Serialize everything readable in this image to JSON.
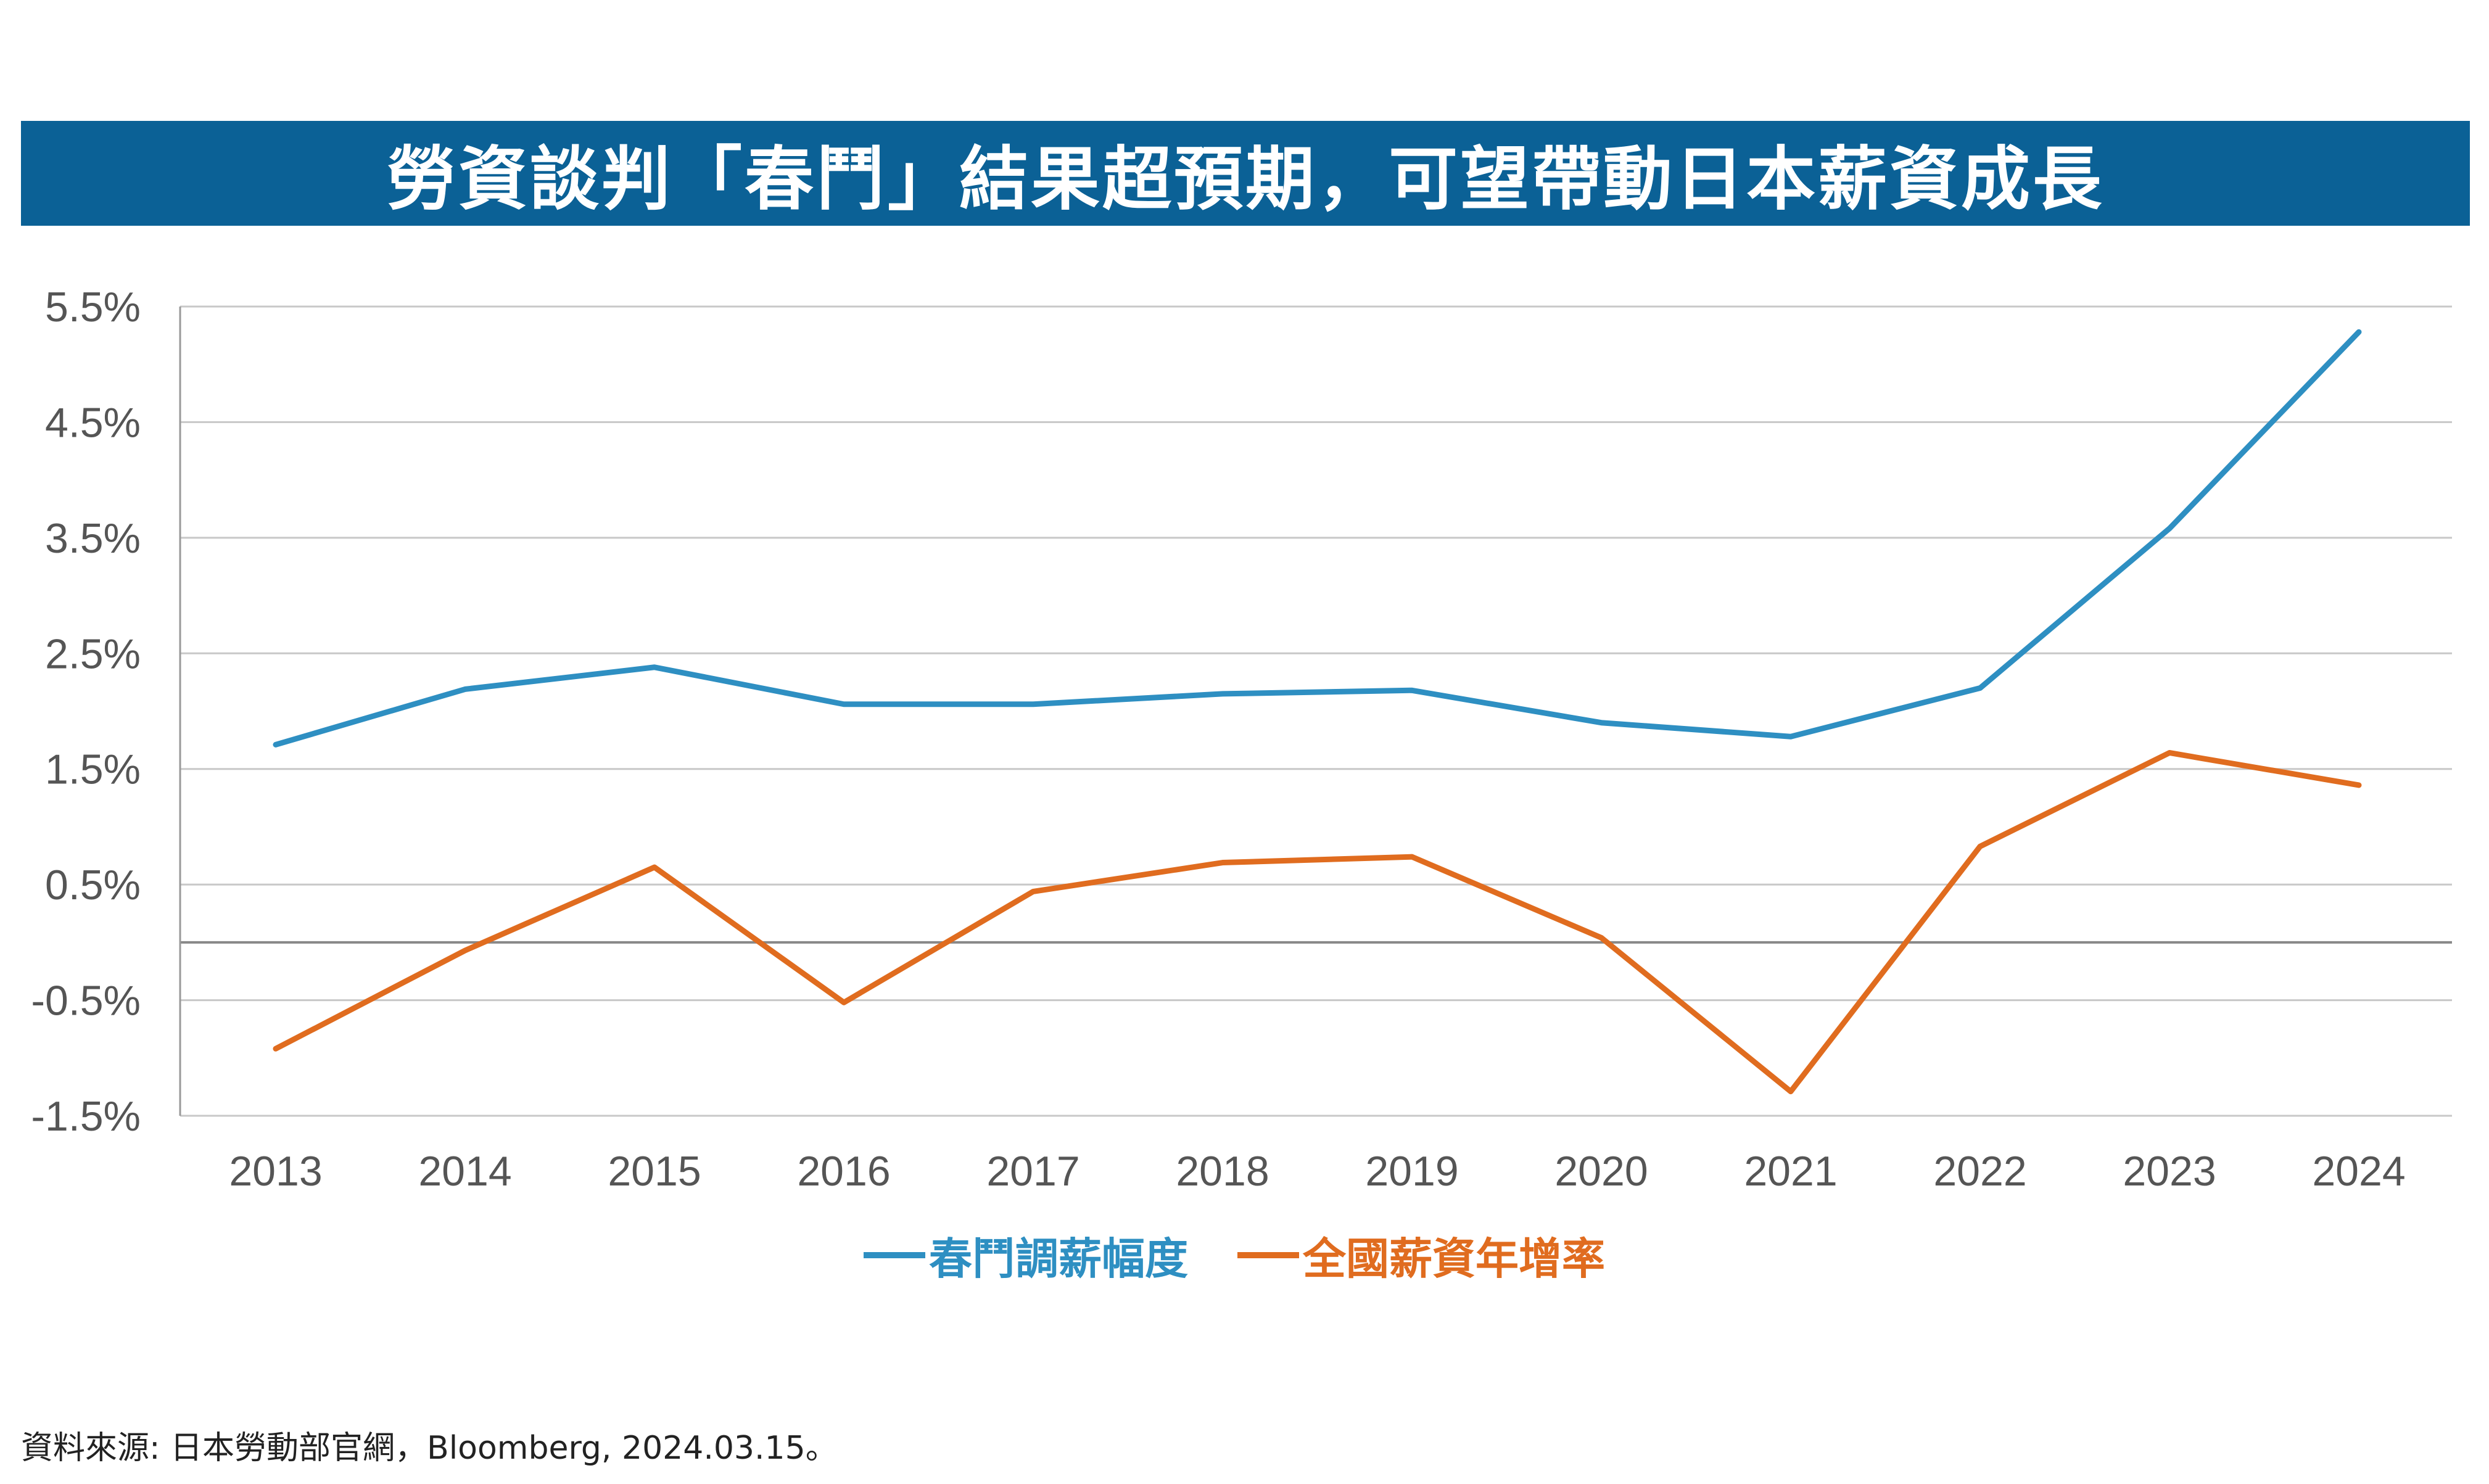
{
  "title": "勞資談判「春鬥」結果超預期，可望帶動日本薪資成長",
  "source": "資料來源: 日本勞動部官網，Bloomberg, 2024.03.15。",
  "colors": {
    "banner": "#0b6196",
    "series_blue": "#2e8fc2",
    "series_orange": "#e06c1f",
    "grid": "#c8c8c8",
    "axis": "#999999",
    "zero_line": "#888888"
  },
  "chart_data": {
    "type": "line",
    "title": "勞資談判「春鬥」結果超預期，可望帶動日本薪資成長",
    "xlabel": "",
    "ylabel": "",
    "categories": [
      "2013",
      "2014",
      "2015",
      "2016",
      "2017",
      "2018",
      "2019",
      "2020",
      "2021",
      "2022",
      "2023",
      "2024"
    ],
    "yticks": [
      "5.5%",
      "4.5%",
      "3.5%",
      "2.5%",
      "1.5%",
      "0.5%",
      "-0.5%",
      "-1.5%"
    ],
    "ylim": [
      -1.5,
      5.5
    ],
    "grid": true,
    "legend_position": "bottom",
    "series": [
      {
        "name": "春鬥調薪幅度",
        "color": "#2e8fc2",
        "values": [
          1.71,
          2.19,
          2.38,
          2.06,
          2.06,
          2.15,
          2.18,
          1.9,
          1.78,
          2.2,
          3.58,
          5.28
        ]
      },
      {
        "name": "全國薪資年增率",
        "color": "#e06c1f",
        "values": [
          -0.92,
          -0.07,
          0.65,
          -0.52,
          0.44,
          0.69,
          0.74,
          0.04,
          -1.29,
          0.83,
          1.64,
          1.36
        ]
      }
    ]
  }
}
